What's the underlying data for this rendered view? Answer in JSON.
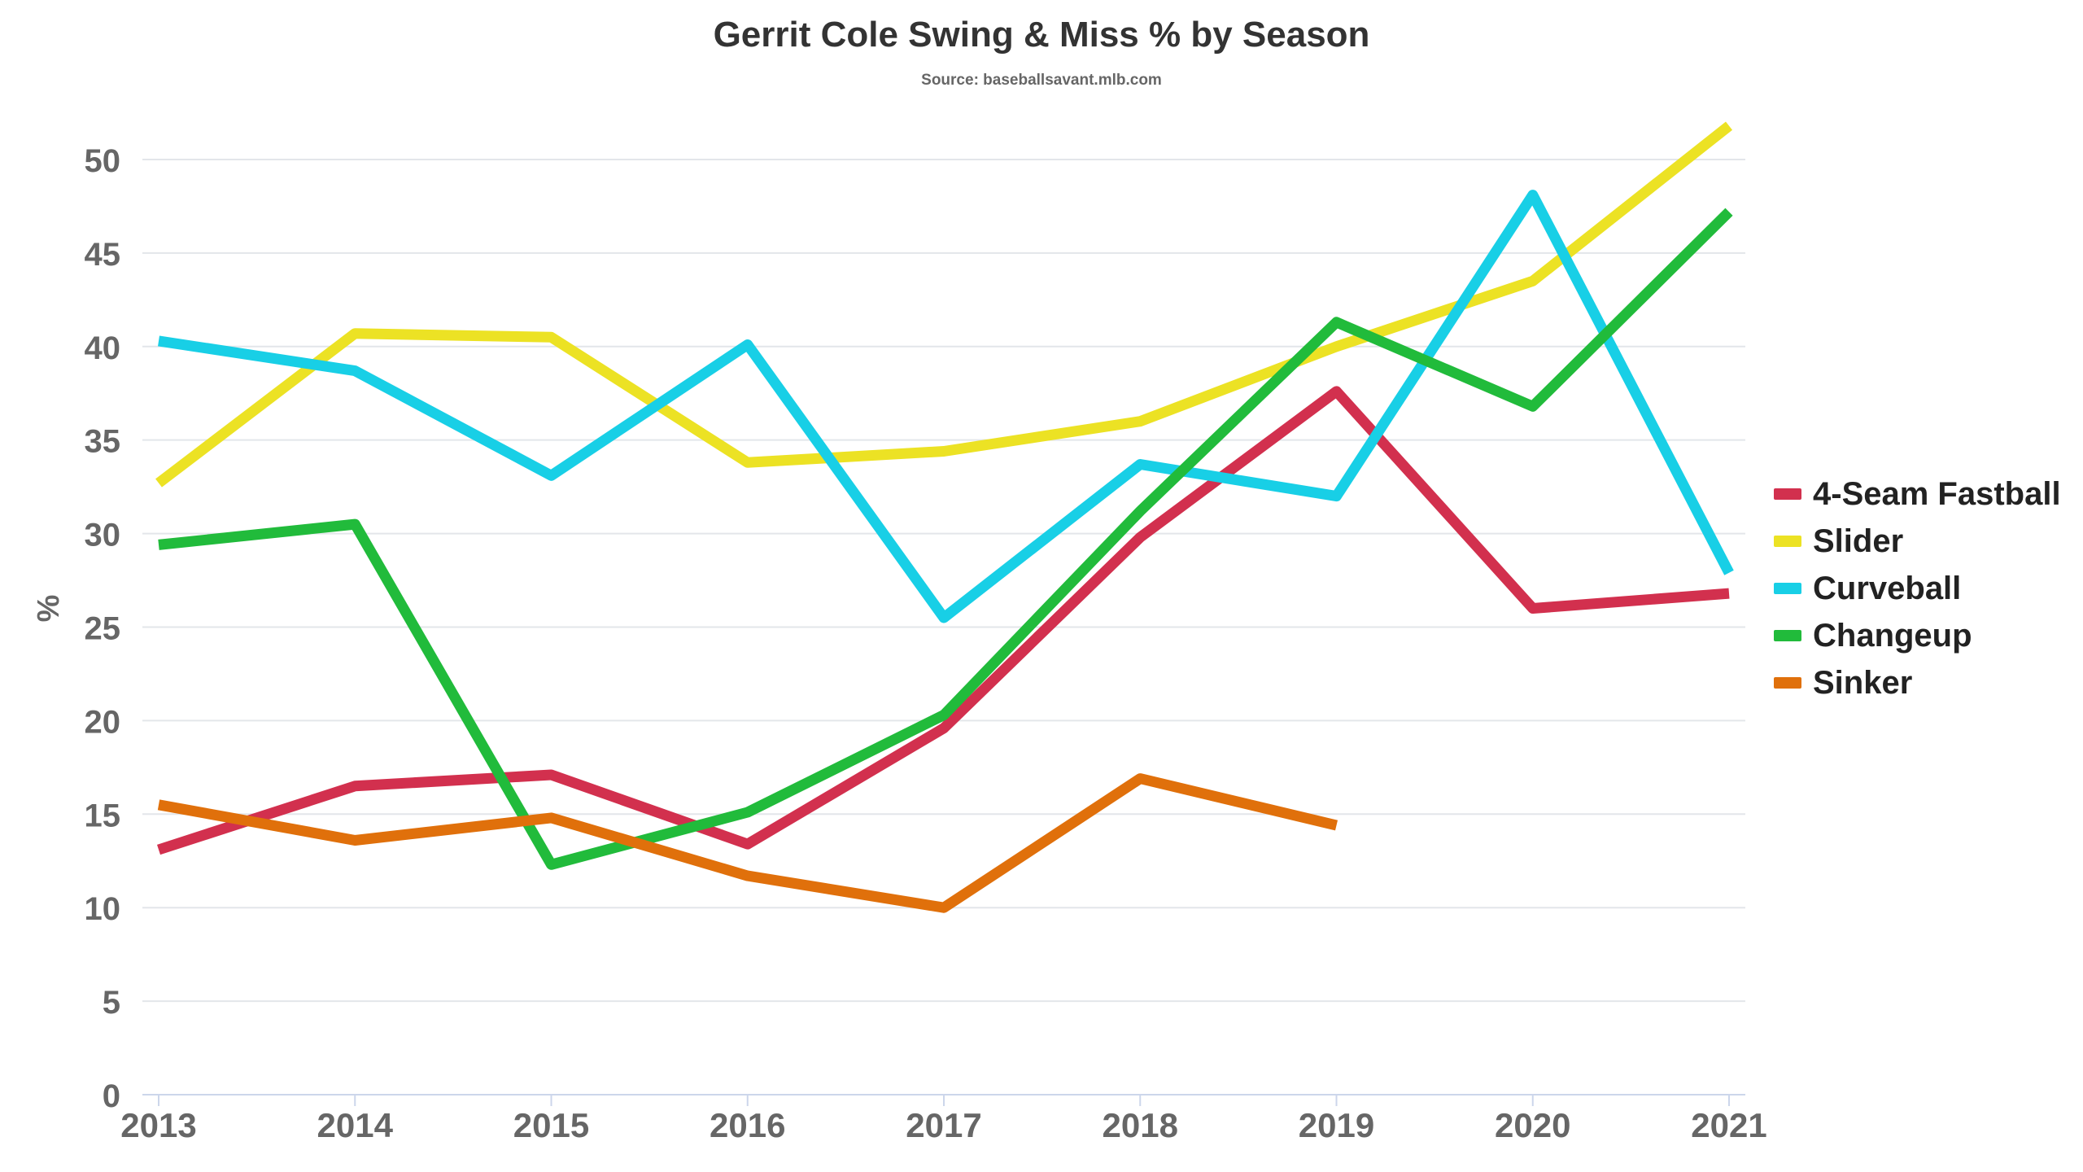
{
  "chart_data": {
    "type": "line",
    "title": "Gerrit Cole Swing & Miss % by Season",
    "subtitle": "Source: baseballsavant.mlb.com",
    "xlabel": "",
    "ylabel": "%",
    "ylim": [
      0,
      52
    ],
    "yticks": [
      "0",
      "5",
      "10",
      "15",
      "20",
      "25",
      "30",
      "35",
      "40",
      "45",
      "50"
    ],
    "x": [
      "2013",
      "2014",
      "2015",
      "2016",
      "2017",
      "2018",
      "2019",
      "2020",
      "2021"
    ],
    "grid": true,
    "legend_position": "right",
    "series": [
      {
        "name": "4-Seam Fastball",
        "color": "#d2304e",
        "values": [
          13.1,
          16.5,
          17.1,
          13.4,
          19.6,
          29.8,
          37.6,
          26.0,
          26.8
        ]
      },
      {
        "name": "Slider",
        "color": "#ece224",
        "values": [
          32.7,
          40.7,
          40.5,
          33.8,
          34.4,
          36.0,
          40.0,
          43.5,
          51.8
        ]
      },
      {
        "name": "Curveball",
        "color": "#18cfe6",
        "values": [
          40.3,
          38.7,
          33.1,
          40.1,
          25.5,
          33.7,
          32.0,
          48.1,
          27.9
        ]
      },
      {
        "name": "Changeup",
        "color": "#21bb3b",
        "values": [
          29.4,
          30.5,
          12.3,
          15.1,
          20.3,
          31.2,
          41.3,
          36.8,
          47.2
        ]
      },
      {
        "name": "Sinker",
        "color": "#e0700b",
        "values": [
          15.5,
          13.6,
          14.8,
          11.7,
          10.0,
          16.9,
          14.4,
          null,
          null
        ]
      }
    ]
  }
}
